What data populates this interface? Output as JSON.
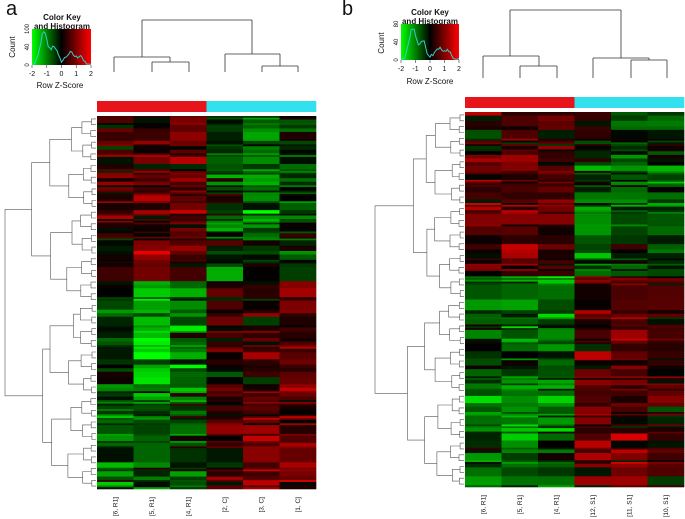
{
  "figure": {
    "panels": [
      "a",
      "b"
    ]
  },
  "color_key": {
    "title_line1": "Color Key",
    "title_line2": "and Histogram",
    "xlabel": "Row Z-Score",
    "ylabel": "Count",
    "x_ticks": [
      "-2",
      "-1",
      "0",
      "1",
      "2"
    ],
    "colors": {
      "low": "#00ff00",
      "mid": "#000000",
      "high": "#ff0000",
      "histogram": "#33cccc"
    }
  },
  "group_colors": {
    "R": "#e6141b",
    "C": "#33e0ee",
    "S": "#33e0ee"
  },
  "chart_data": [
    {
      "type": "heatmap",
      "panel": "a",
      "key_y_ticks": [
        "0",
        "40",
        "100"
      ],
      "columns": [
        "[6, R1]",
        "[5, R1]",
        "[4, R1]",
        "[2, C]",
        "[3, C]",
        "[1, C]"
      ],
      "column_groups": [
        "R",
        "R",
        "R",
        "C",
        "C",
        "C"
      ],
      "block_means": [
        [
          0.4,
          0.5,
          0.5,
          -0.6,
          -0.6,
          -0.5
        ],
        [
          0.6,
          0.7,
          0.9,
          -0.5,
          -0.9,
          -0.7
        ],
        [
          0.3,
          0.9,
          0.5,
          -0.4,
          -0.5,
          -0.4
        ],
        [
          -0.6,
          -1.2,
          -1.2,
          0.4,
          0.6,
          0.7
        ],
        [
          -0.5,
          -1.6,
          -0.8,
          0.3,
          0.5,
          0.6
        ],
        [
          -0.9,
          -0.7,
          -0.6,
          0.5,
          0.7,
          0.8
        ],
        [
          -0.5,
          -0.6,
          -0.5,
          0.5,
          0.8,
          0.9
        ]
      ]
    },
    {
      "type": "heatmap",
      "panel": "b",
      "key_y_ticks": [
        "0",
        "40",
        "80"
      ],
      "columns": [
        "[6, R1]",
        "[5, R1]",
        "[4, R1]",
        "[12, S1]",
        "[11, S1]",
        "[10, S1]"
      ],
      "column_groups": [
        "R",
        "R",
        "R",
        "S",
        "S",
        "S"
      ],
      "block_means": [
        [
          0.3,
          0.4,
          0.4,
          -0.3,
          -0.5,
          -0.4
        ],
        [
          0.6,
          0.6,
          0.7,
          -0.8,
          -0.7,
          -0.9
        ],
        [
          0.5,
          0.8,
          0.3,
          -0.6,
          -0.4,
          -0.5
        ],
        [
          -0.6,
          -0.8,
          -0.9,
          0.5,
          0.6,
          0.5
        ],
        [
          -0.5,
          -0.9,
          -0.7,
          0.6,
          0.7,
          0.6
        ],
        [
          -0.8,
          -1.0,
          -0.9,
          0.7,
          0.6,
          0.4
        ],
        [
          -0.6,
          -0.7,
          -0.6,
          0.6,
          0.7,
          0.5
        ]
      ]
    }
  ]
}
